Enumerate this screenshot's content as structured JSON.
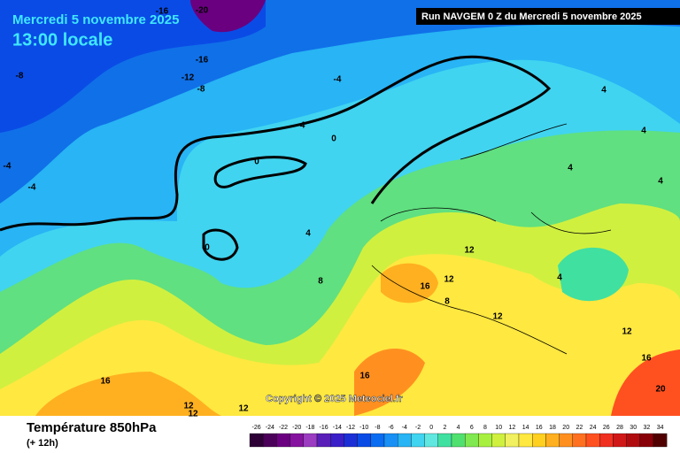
{
  "header": {
    "date": "Mercredi 5 novembre 2025",
    "time": "13:00 locale"
  },
  "run": "Run NAVGEM 0 Z du Mercredi 5 novembre 2025",
  "copyright": "Copyright © 2025 Meteociel.fr",
  "footer": {
    "title": "Température 850hPa",
    "subtitle": "(+ 12h)"
  },
  "contour_labels": [
    -16,
    -20,
    -16,
    -12,
    -8,
    -8,
    -4,
    -4,
    0,
    0,
    0,
    4,
    8,
    12,
    12,
    16,
    8,
    12,
    4,
    12,
    16,
    20,
    16,
    16,
    12,
    12,
    12,
    4,
    4,
    4,
    4,
    -4,
    -4
  ],
  "colorbar": {
    "labels": [
      -26,
      -24,
      -22,
      -20,
      -18,
      -16,
      -14,
      -12,
      -10,
      -8,
      -6,
      -4,
      -2,
      0,
      2,
      4,
      6,
      8,
      10,
      12,
      14,
      16,
      18,
      20,
      22,
      24,
      26,
      28,
      30,
      32,
      34
    ],
    "colors": [
      "#2d0036",
      "#4b0059",
      "#6a0080",
      "#85139f",
      "#9b3cc1",
      "#5a1fb8",
      "#3a1ec8",
      "#1c2fd6",
      "#0a4be6",
      "#0a6cf0",
      "#1890f5",
      "#28b4f5",
      "#40d4f0",
      "#60e8e0",
      "#40e0a0",
      "#50e070",
      "#80e850",
      "#a8f040",
      "#d0f040",
      "#f0f060",
      "#ffe840",
      "#ffd020",
      "#ffb020",
      "#ff9020",
      "#ff7020",
      "#ff5020",
      "#f03020",
      "#d01818",
      "#b00c10",
      "#880008",
      "#500000"
    ]
  }
}
